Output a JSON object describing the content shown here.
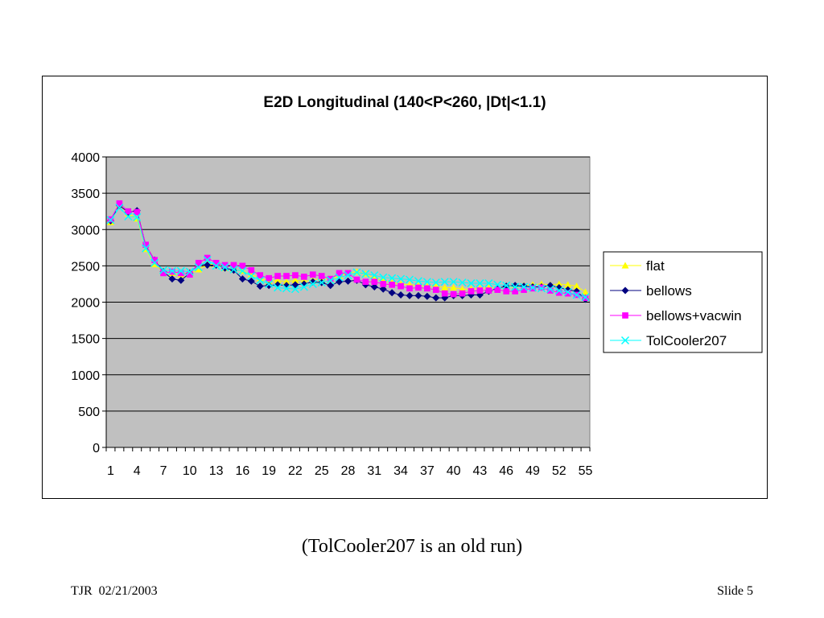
{
  "slide": {
    "caption": "(TolCooler207 is an old run)",
    "footer_left": "TJR  02/21/2003",
    "footer_right": "Slide 5"
  },
  "colors": {
    "plot_background": "#c0c0c0",
    "flat": "#ffff00",
    "bellows": "#000080",
    "bellows+vacwin": "#ff00ff",
    "TolCooler207": "#00ffff"
  },
  "chart_data": {
    "type": "line",
    "title": "E2D Longitudinal   (140<P<260, |Dt|<1.1)",
    "xlabel": "",
    "ylabel": "",
    "ylim": [
      0,
      4000
    ],
    "yticks": [
      0,
      500,
      1000,
      1500,
      2000,
      2500,
      3000,
      3500,
      4000
    ],
    "x": [
      1,
      2,
      3,
      4,
      5,
      6,
      7,
      8,
      9,
      10,
      11,
      12,
      13,
      14,
      15,
      16,
      17,
      18,
      19,
      20,
      21,
      22,
      23,
      24,
      25,
      26,
      27,
      28,
      29,
      30,
      31,
      32,
      33,
      34,
      35,
      36,
      37,
      38,
      39,
      40,
      41,
      42,
      43,
      44,
      45,
      46,
      47,
      48,
      49,
      50,
      51,
      52,
      53,
      54,
      55
    ],
    "xtick_labels": [
      "1",
      "4",
      "7",
      "10",
      "13",
      "16",
      "19",
      "22",
      "25",
      "28",
      "31",
      "34",
      "37",
      "40",
      "43",
      "46",
      "49",
      "52",
      "55"
    ],
    "grid": "horizontal",
    "legend_position": "right",
    "series": [
      {
        "name": "flat",
        "marker": "triangle",
        "values": [
          3100,
          3340,
          3220,
          3150,
          2730,
          2520,
          2420,
          2400,
          2380,
          2400,
          2450,
          2520,
          2520,
          2470,
          2460,
          2430,
          2380,
          2330,
          2290,
          2300,
          2280,
          2300,
          2290,
          2300,
          2330,
          2310,
          2360,
          2400,
          2420,
          2390,
          2330,
          2300,
          2270,
          2250,
          2240,
          2230,
          2220,
          2220,
          2200,
          2200,
          2180,
          2180,
          2190,
          2200,
          2200,
          2210,
          2220,
          2230,
          2240,
          2250,
          2240,
          2250,
          2240,
          2220,
          2140
        ]
      },
      {
        "name": "bellows",
        "marker": "diamond",
        "values": [
          3120,
          3330,
          3240,
          3260,
          2780,
          2580,
          2420,
          2320,
          2300,
          2400,
          2520,
          2510,
          2510,
          2470,
          2440,
          2320,
          2290,
          2220,
          2230,
          2240,
          2230,
          2240,
          2250,
          2280,
          2270,
          2230,
          2280,
          2290,
          2300,
          2240,
          2210,
          2180,
          2130,
          2100,
          2090,
          2090,
          2080,
          2060,
          2060,
          2090,
          2090,
          2100,
          2100,
          2150,
          2190,
          2220,
          2230,
          2220,
          2210,
          2210,
          2230,
          2200,
          2170,
          2150,
          2040
        ]
      },
      {
        "name": "bellows+vacwin",
        "marker": "square",
        "values": [
          3140,
          3360,
          3250,
          3240,
          2790,
          2580,
          2400,
          2420,
          2400,
          2380,
          2540,
          2610,
          2540,
          2510,
          2510,
          2500,
          2440,
          2370,
          2330,
          2360,
          2360,
          2370,
          2350,
          2380,
          2360,
          2320,
          2400,
          2400,
          2310,
          2280,
          2280,
          2250,
          2240,
          2220,
          2190,
          2200,
          2190,
          2170,
          2120,
          2110,
          2120,
          2150,
          2160,
          2160,
          2170,
          2150,
          2150,
          2170,
          2190,
          2200,
          2160,
          2130,
          2120,
          2100,
          2060
        ]
      },
      {
        "name": "TolCooler207",
        "marker": "x",
        "values": [
          3130,
          3300,
          3180,
          3170,
          2740,
          2540,
          2440,
          2430,
          2430,
          2420,
          2480,
          2580,
          2500,
          2480,
          2450,
          2430,
          2360,
          2300,
          2250,
          2200,
          2190,
          2180,
          2210,
          2250,
          2270,
          2300,
          2340,
          2370,
          2410,
          2390,
          2370,
          2340,
          2330,
          2320,
          2310,
          2290,
          2280,
          2270,
          2280,
          2280,
          2270,
          2260,
          2260,
          2260,
          2240,
          2230,
          2210,
          2210,
          2200,
          2190,
          2180,
          2160,
          2140,
          2100,
          2070
        ]
      }
    ]
  }
}
